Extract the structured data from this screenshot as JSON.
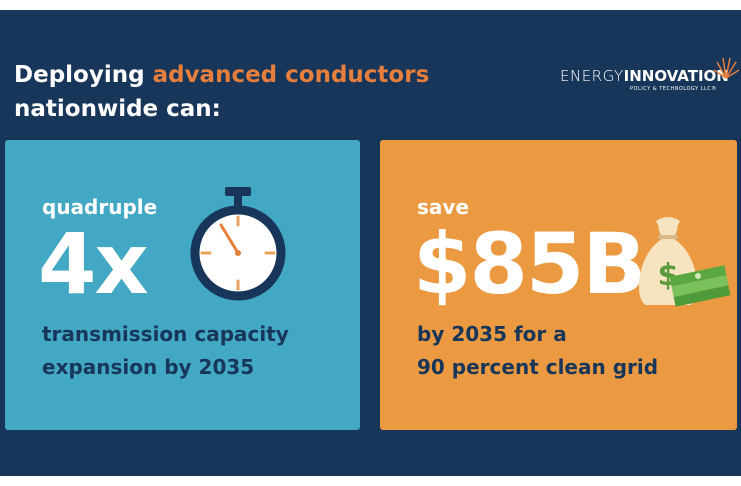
{
  "header": {
    "title": {
      "lead": "Deploying",
      "highlight": "advanced conductors",
      "rest": "nationwide can:"
    }
  },
  "logo": {
    "name_light": "ENERGY",
    "name_bold": "INNOVATION",
    "tagline": "POLICY & TECHNOLOGY LLC®"
  },
  "cards": [
    {
      "label": "quadruple",
      "figure": "4x",
      "caption": [
        "transmission capacity",
        "expansion by 2035"
      ]
    },
    {
      "label": "save",
      "figure": "$85B",
      "caption": [
        "by 2035 for a",
        "90 percent clean grid"
      ]
    }
  ]
}
